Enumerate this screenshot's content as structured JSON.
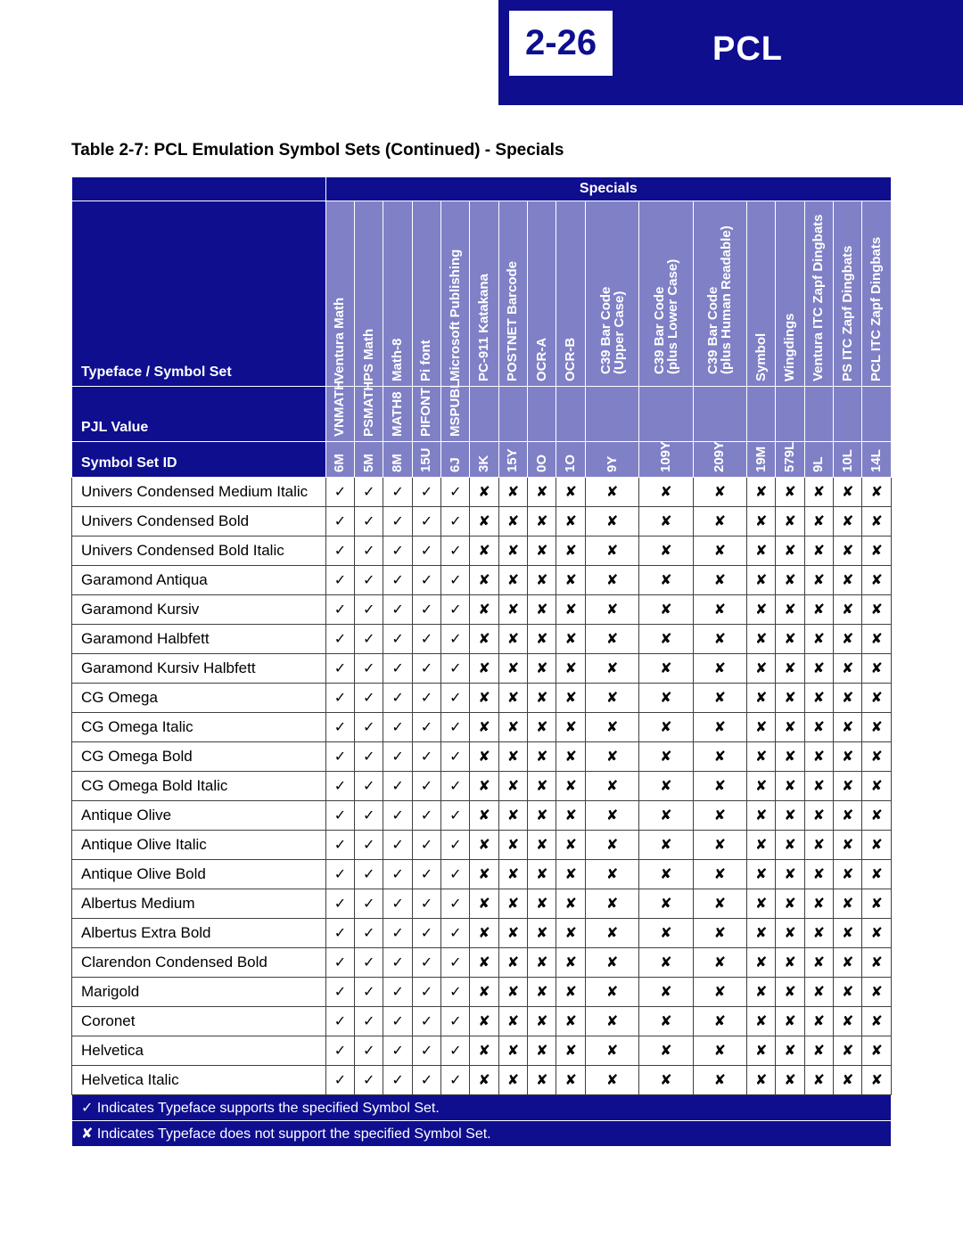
{
  "header": {
    "page_num": "2-26",
    "label": "PCL",
    "bg_color": "#0e0e8f",
    "text_color": "#ffffff"
  },
  "caption": "Table 2-7:  PCL Emulation Symbol Sets (Continued) - Specials",
  "specials_label": "Specials",
  "row_header_labels": {
    "typeface": "Typeface / Symbol Set",
    "pjl": "PJL Value",
    "symset": "Symbol Set ID"
  },
  "columns": [
    {
      "name": "Ventura Math",
      "pjl": "VNMATH",
      "id": "6M",
      "w": "narrow"
    },
    {
      "name": "PS Math",
      "pjl": "PSMATH",
      "id": "5M",
      "w": "narrow"
    },
    {
      "name": "Math-8",
      "pjl": "MATH8",
      "id": "8M",
      "w": "narrow"
    },
    {
      "name": "Pi font",
      "pjl": "PIFONT",
      "id": "15U",
      "w": "narrow"
    },
    {
      "name": "Microsoft Publishing",
      "pjl": "MSPUBL",
      "id": "6J",
      "w": "narrow"
    },
    {
      "name": "PC-911 Katakana",
      "pjl": "",
      "id": "3K",
      "w": "narrow"
    },
    {
      "name": "POSTNET Barcode",
      "pjl": "",
      "id": "15Y",
      "w": "narrow"
    },
    {
      "name": "OCR-A",
      "pjl": "",
      "id": "0O",
      "w": "narrow"
    },
    {
      "name": "OCR-B",
      "pjl": "",
      "id": "1O",
      "w": "narrow"
    },
    {
      "name": "C39 Bar Code\n(Upper Case)",
      "pjl": "",
      "id": "9Y",
      "w": "wide"
    },
    {
      "name": "C39 Bar Code\n(plus Lower Case)",
      "pjl": "",
      "id": "109Y",
      "w": "wide"
    },
    {
      "name": "C39 Bar Code\n(plus Human Readable)",
      "pjl": "",
      "id": "209Y",
      "w": "wide"
    },
    {
      "name": "Symbol",
      "pjl": "",
      "id": "19M",
      "w": "narrow"
    },
    {
      "name": "Wingdings",
      "pjl": "",
      "id": "579L",
      "w": "narrow"
    },
    {
      "name": "Ventura ITC Zapf Dingbats",
      "pjl": "",
      "id": "9L",
      "w": "narrow"
    },
    {
      "name": "PS ITC Zapf Dingbats",
      "pjl": "",
      "id": "10L",
      "w": "narrow"
    },
    {
      "name": "PCL ITC Zapf Dingbats",
      "pjl": "",
      "id": "14L",
      "w": "narrow"
    }
  ],
  "typefaces": [
    "Univers Condensed Medium Italic",
    "Univers Condensed Bold",
    "Univers Condensed Bold Italic",
    "Garamond Antiqua",
    "Garamond Kursiv",
    "Garamond Halbfett",
    "Garamond Kursiv Halbfett",
    "CG Omega",
    "CG Omega Italic",
    "CG Omega Bold",
    "CG Omega Bold Italic",
    "Antique Olive",
    "Antique Olive Italic",
    "Antique Olive Bold",
    "Albertus Medium",
    "Albertus Extra Bold",
    "Clarendon Condensed Bold",
    "Marigold",
    "Coronet",
    "Helvetica",
    "Helvetica Italic"
  ],
  "support_pattern": [
    1,
    1,
    1,
    1,
    1,
    0,
    0,
    0,
    0,
    0,
    0,
    0,
    0,
    0,
    0,
    0,
    0
  ],
  "glyph_yes": "✓",
  "glyph_no": "✘",
  "legend": [
    "✓ Indicates Typeface supports the specified Symbol Set.",
    "✘ Indicates Typeface does not support the specified Symbol Set."
  ],
  "colors": {
    "header_blue": "#0e0e8f",
    "sub_blue": "#8080c7",
    "row_bg": "#ffffff",
    "text": "#000000",
    "border_body": "#404040"
  }
}
